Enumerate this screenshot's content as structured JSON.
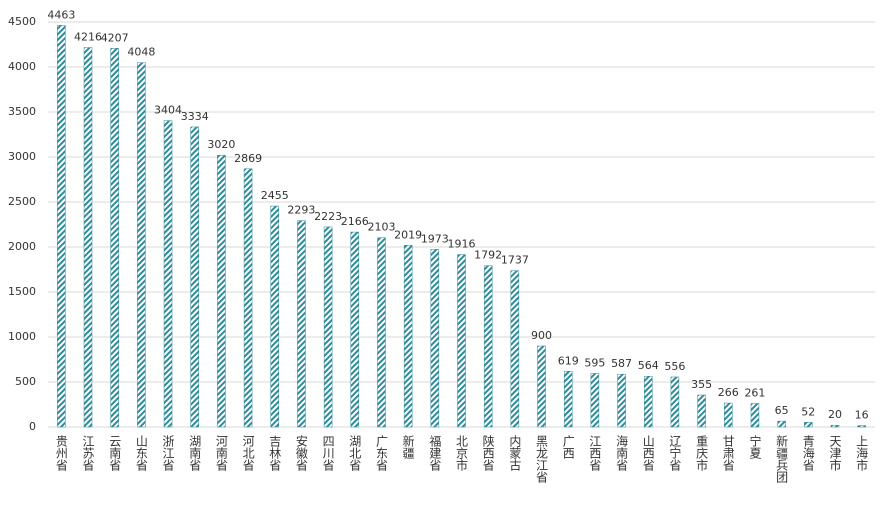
{
  "chart_data": {
    "type": "bar",
    "categories": [
      "贵州省",
      "江苏省",
      "云南省",
      "山东省",
      "浙江省",
      "湖南省",
      "河南省",
      "河北省",
      "吉林省",
      "安徽省",
      "四川省",
      "湖北省",
      "广东省",
      "新疆",
      "福建省",
      "北京市",
      "陕西省",
      "内蒙古",
      "黑龙江省",
      "广西",
      "江西省",
      "海南省",
      "山西省",
      "辽宁省",
      "重庆市",
      "甘肃省",
      "宁夏",
      "新疆兵团",
      "青海省",
      "天津市",
      "上海市"
    ],
    "values": [
      4463,
      4216,
      4207,
      4048,
      3404,
      3334,
      3020,
      2869,
      2455,
      2293,
      2223,
      2166,
      2103,
      2019,
      1973,
      1916,
      1792,
      1737,
      900,
      619,
      595,
      587,
      564,
      556,
      355,
      266,
      261,
      65,
      52,
      20,
      16
    ],
    "color": "#2e8b9a",
    "ylim": [
      0,
      4500
    ],
    "yticks": [
      0,
      500,
      1000,
      1500,
      2000,
      2500,
      3000,
      3500,
      4000,
      4500
    ],
    "grid": true
  }
}
